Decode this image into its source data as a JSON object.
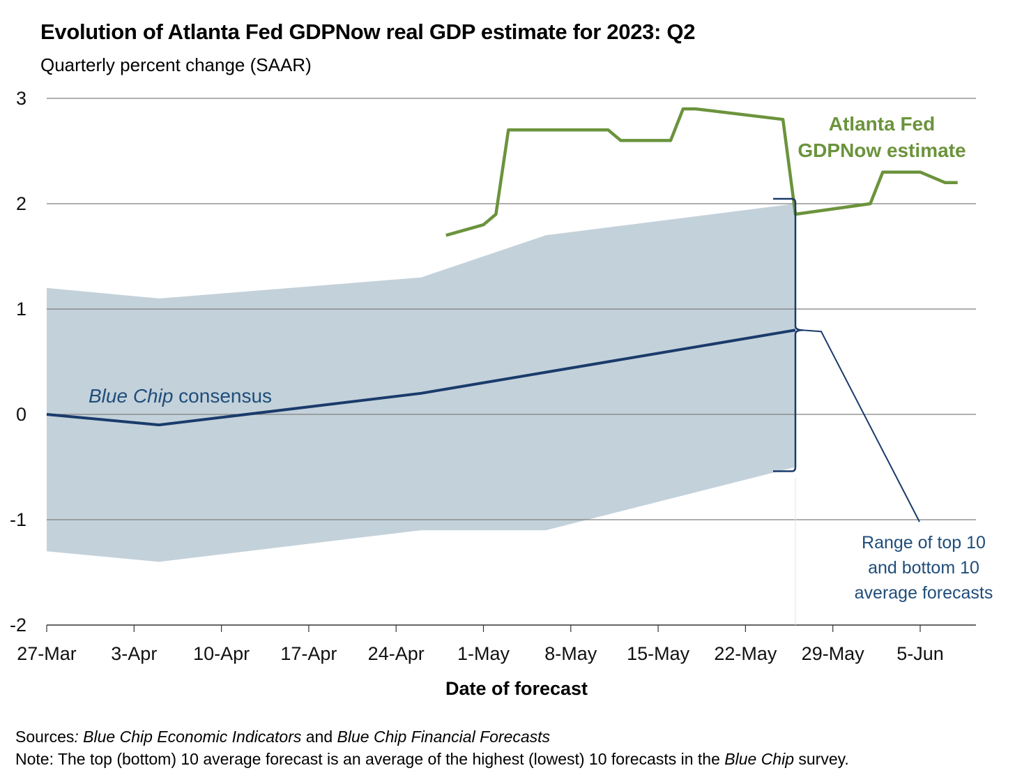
{
  "title": "Evolution of Atlanta Fed GDPNow real GDP estimate for 2023: Q2",
  "subtitle": "Quarterly percent change (SAAR)",
  "notes": {
    "sources_label": "Sources",
    "sources_text_1": ": Blue Chip Economic Indicators",
    "sources_and": " and ",
    "sources_text_2": "Blue Chip Financial Forecasts",
    "note_label": "Note:",
    "note_text_1": " The top (bottom) 10 average forecast is an average of the highest (lowest) 10 forecasts in the ",
    "note_italic": "Blue Chip",
    "note_text_2": " survey."
  },
  "colors": {
    "gdpnow": "#6b933c",
    "consensus": "#1a3b6b",
    "range_band": "#c3d1da",
    "annotation_blue": "#1f4d7a",
    "gridline": "#7f7f7f"
  },
  "chart_data": {
    "type": "line",
    "xlabel": "Date of forecast",
    "ylabel": "",
    "ylim": [
      -2,
      3
    ],
    "yticks": [
      "-2",
      "-1",
      "0",
      "1",
      "2",
      "3"
    ],
    "xticks": [
      "27-Mar",
      "3-Apr",
      "10-Apr",
      "17-Apr",
      "24-Apr",
      "1-May",
      "8-May",
      "15-May",
      "22-May",
      "29-May",
      "5-Jun"
    ],
    "grid": "horizontal",
    "series": [
      {
        "name": "Atlanta Fed GDPNow estimate",
        "label_lines": [
          "Atlanta Fed",
          "GDPNow estimate"
        ],
        "x": [
          "2023-04-28",
          "2023-05-01",
          "2023-05-02",
          "2023-05-03",
          "2023-05-11",
          "2023-05-12",
          "2023-05-16",
          "2023-05-17",
          "2023-05-18",
          "2023-05-25",
          "2023-05-26",
          "2023-06-01",
          "2023-06-02",
          "2023-06-05",
          "2023-06-07",
          "2023-06-08"
        ],
        "values": [
          1.7,
          1.8,
          1.9,
          2.7,
          2.7,
          2.6,
          2.6,
          2.9,
          2.9,
          2.8,
          1.9,
          2.0,
          2.3,
          2.3,
          2.2,
          2.2
        ]
      },
      {
        "name": "Blue Chip consensus",
        "label_italic": "Blue Chip",
        "label_rest": " consensus",
        "x": [
          "2023-03-27",
          "2023-04-05",
          "2023-04-26",
          "2023-05-06",
          "2023-05-26"
        ],
        "values": [
          0.0,
          -0.1,
          0.2,
          0.4,
          0.8
        ]
      },
      {
        "name": "Range of top 10 and bottom 10 average forecasts",
        "type": "area",
        "label_lines": [
          "Range of top 10",
          "and bottom 10",
          "average forecasts"
        ],
        "x": [
          "2023-03-27",
          "2023-04-05",
          "2023-04-26",
          "2023-05-06",
          "2023-05-26"
        ],
        "upper": [
          1.2,
          1.1,
          1.3,
          1.7,
          2.0
        ],
        "lower": [
          -1.3,
          -1.4,
          -1.1,
          -1.1,
          -0.5
        ]
      }
    ]
  }
}
